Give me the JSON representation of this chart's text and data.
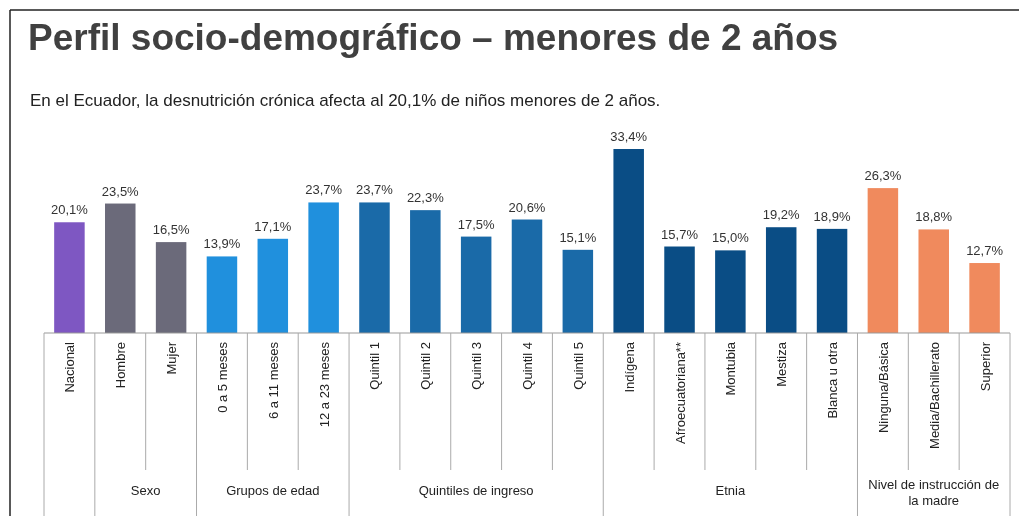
{
  "chart_data": {
    "type": "bar",
    "title": "Perfil socio-demográfico – menores de 2 años",
    "subtitle": "En el Ecuador, la desnutrición crónica afecta al 20,1% de niños menores de 2 años.",
    "categories": [
      "Nacional",
      "Hombre",
      "Mujer",
      "0 a 5 meses",
      "6 a 11 meses",
      "12 a 23 meses",
      "Quintil 1",
      "Quintil 2",
      "Quintil 3",
      "Quintil 4",
      "Quintil 5",
      "Indígena",
      "Afroecuatoriana**",
      "Montubia",
      "Mestiza",
      "Blanca u otra",
      "Ninguna/Básica",
      "Media/Bachillerato",
      "Superior"
    ],
    "values": [
      20.1,
      23.5,
      16.5,
      13.9,
      17.1,
      23.7,
      23.7,
      22.3,
      17.5,
      20.6,
      15.1,
      33.4,
      15.7,
      15.0,
      19.2,
      18.9,
      26.3,
      18.8,
      12.7
    ],
    "value_labels": [
      "20,1%",
      "23,5%",
      "16,5%",
      "13,9%",
      "17,1%",
      "23,7%",
      "23,7%",
      "22,3%",
      "17,5%",
      "20,6%",
      "15,1%",
      "33,4%",
      "15,7%",
      "15,0%",
      "19,2%",
      "18,9%",
      "26,3%",
      "18,8%",
      "12,7%"
    ],
    "colors": [
      "#7e57c2",
      "#6b6a7a",
      "#6b6a7a",
      "#2090dd",
      "#2090dd",
      "#2090dd",
      "#1a6aa8",
      "#1a6aa8",
      "#1a6aa8",
      "#1a6aa8",
      "#1a6aa8",
      "#0a4d85",
      "#0a4d85",
      "#0a4d85",
      "#0a4d85",
      "#0a4d85",
      "#f08a5d",
      "#f08a5d",
      "#f08a5d"
    ],
    "annotations": [
      "Sexo",
      "Grupos de edad",
      "Quintiles de ingreso",
      "Etnia",
      "Nivel de instrucción de la madre"
    ]
  }
}
